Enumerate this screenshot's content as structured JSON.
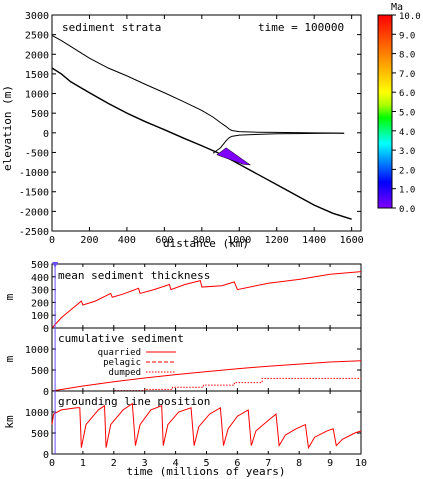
{
  "chart_data": [
    {
      "type": "area",
      "title": "sediment strata",
      "annotation": "time = 100000",
      "xlabel": "distance (km)",
      "ylabel": "elevation (m)",
      "xlim": [
        0,
        1650
      ],
      "ylim": [
        -2500,
        3000
      ],
      "xticks": [
        0,
        200,
        400,
        600,
        800,
        1000,
        1200,
        1400,
        1600
      ],
      "yticks": [
        3000,
        2500,
        2000,
        1500,
        1000,
        500,
        0,
        -500,
        -1000,
        -1500,
        -2000,
        -2500
      ],
      "series": [
        {
          "role": "upper-ice-surface",
          "x": [
            0,
            50,
            100,
            200,
            300,
            400,
            500,
            600,
            700,
            800,
            860,
            900,
            930,
            945,
            960,
            1000,
            1100,
            1200,
            1300,
            1400,
            1500,
            1560
          ],
          "y": [
            2480,
            2350,
            2200,
            1900,
            1650,
            1450,
            1230,
            1020,
            800,
            570,
            400,
            260,
            160,
            100,
            60,
            30,
            15,
            10,
            5,
            0,
            -5,
            -10
          ]
        },
        {
          "role": "ice-base",
          "x": [
            860,
            900,
            930,
            945,
            960,
            1000,
            1100,
            1200,
            1300,
            1400,
            1500,
            1560
          ],
          "y": [
            -520,
            -380,
            -200,
            -130,
            -90,
            -60,
            -40,
            -25,
            -20,
            -15,
            -10,
            -10
          ]
        },
        {
          "role": "bed",
          "x": [
            0,
            50,
            100,
            200,
            300,
            400,
            500,
            600,
            700,
            800,
            900,
            1000,
            1100,
            1200,
            1300,
            1400,
            1500,
            1600
          ],
          "y": [
            1650,
            1500,
            1300,
            1020,
            750,
            500,
            280,
            80,
            -130,
            -330,
            -540,
            -800,
            -1060,
            -1320,
            -1580,
            -1840,
            -2050,
            -2200
          ]
        },
        {
          "role": "sediment-wedge",
          "x": [
            880,
            930,
            1060,
            1020
          ],
          "y": [
            -560,
            -380,
            -820,
            -800
          ],
          "color": "#8000ff"
        }
      ],
      "colorbar": {
        "label": "Ma",
        "ticks": [
          "10.0",
          "9.0",
          "8.0",
          "7.0",
          "6.0",
          "5.0",
          "4.0",
          "3.0",
          "2.0",
          "1.0",
          "0.0"
        ],
        "stops": [
          "#ff0000",
          "#ff2a00",
          "#ff5500",
          "#ff8000",
          "#ffaa00",
          "#ffd400",
          "#ffff00",
          "#aaff00",
          "#00ff00",
          "#00ff80",
          "#00ffff",
          "#00aaff",
          "#0055ff",
          "#0000ff",
          "#4000ff",
          "#8000ff"
        ]
      }
    },
    {
      "type": "line",
      "title": "mean sediment thickness",
      "ylabel": "m",
      "xlim": [
        0,
        10
      ],
      "ylim": [
        0,
        500
      ],
      "yticks": [
        0,
        100,
        200,
        300,
        400,
        500
      ],
      "x": [
        0,
        0.3,
        0.7,
        0.95,
        1.0,
        1.4,
        1.9,
        1.95,
        2.3,
        2.8,
        2.85,
        3.3,
        3.8,
        3.85,
        4.3,
        4.8,
        4.85,
        5.5,
        5.9,
        6.0,
        7.0,
        8.0,
        9.0,
        10.0
      ],
      "y": [
        0,
        80,
        160,
        210,
        180,
        210,
        270,
        240,
        265,
        310,
        270,
        300,
        340,
        300,
        340,
        370,
        320,
        330,
        360,
        300,
        350,
        380,
        420,
        440
      ],
      "color": "#ff0000"
    },
    {
      "type": "line",
      "title": "cumulative sediment",
      "ylabel": "m",
      "xlim": [
        0,
        10
      ],
      "ylim": [
        0,
        1500
      ],
      "yticks": [
        0,
        500,
        1000
      ],
      "series": [
        {
          "name": "quarried",
          "style": "solid",
          "x": [
            0,
            1,
            2,
            3,
            4,
            5,
            6,
            7,
            8,
            9,
            10
          ],
          "y": [
            0,
            120,
            220,
            310,
            390,
            460,
            530,
            590,
            640,
            690,
            720
          ]
        },
        {
          "name": "pelagic",
          "style": "dashed",
          "x": [
            0,
            10
          ],
          "y": [
            0,
            0
          ]
        },
        {
          "name": "dumped",
          "style": "dotted",
          "x": [
            0,
            2.0,
            2.0,
            3.0,
            3.0,
            3.9,
            3.9,
            4.9,
            4.9,
            5.9,
            5.9,
            6.8,
            6.8,
            10
          ],
          "y": [
            0,
            0,
            10,
            10,
            40,
            40,
            90,
            90,
            140,
            140,
            200,
            200,
            300,
            300
          ]
        }
      ],
      "color": "#ff0000"
    },
    {
      "type": "line",
      "title": "grounding line position",
      "ylabel": "km",
      "xlabel": "time (millions of years)",
      "xlim": [
        0,
        10
      ],
      "ylim": [
        0,
        1500
      ],
      "yticks": [
        0,
        500,
        1000
      ],
      "xticks": [
        0,
        1,
        2,
        3,
        4,
        5,
        6,
        7,
        8,
        9,
        10
      ],
      "x": [
        0,
        0.05,
        0.3,
        0.8,
        0.9,
        0.95,
        1.1,
        1.5,
        1.7,
        1.75,
        1.9,
        2.3,
        2.6,
        2.7,
        2.85,
        3.2,
        3.55,
        3.6,
        3.75,
        4.1,
        4.5,
        4.6,
        4.75,
        5.1,
        5.45,
        5.55,
        5.7,
        6.0,
        6.35,
        6.45,
        6.6,
        7.0,
        7.25,
        7.35,
        7.55,
        7.9,
        8.2,
        8.3,
        8.5,
        8.9,
        9.1,
        9.2,
        9.4,
        9.8,
        10
      ],
      "y": [
        700,
        950,
        1050,
        1100,
        1100,
        150,
        700,
        1050,
        1150,
        150,
        700,
        1050,
        1200,
        200,
        700,
        1050,
        1150,
        200,
        700,
        1000,
        1100,
        200,
        650,
        950,
        1100,
        200,
        600,
        900,
        1050,
        200,
        550,
        800,
        950,
        200,
        450,
        600,
        700,
        150,
        400,
        550,
        600,
        200,
        350,
        500,
        550
      ],
      "color": "#ff0000",
      "marker": {
        "x": 0.1,
        "color": "#6a4cff"
      }
    }
  ]
}
